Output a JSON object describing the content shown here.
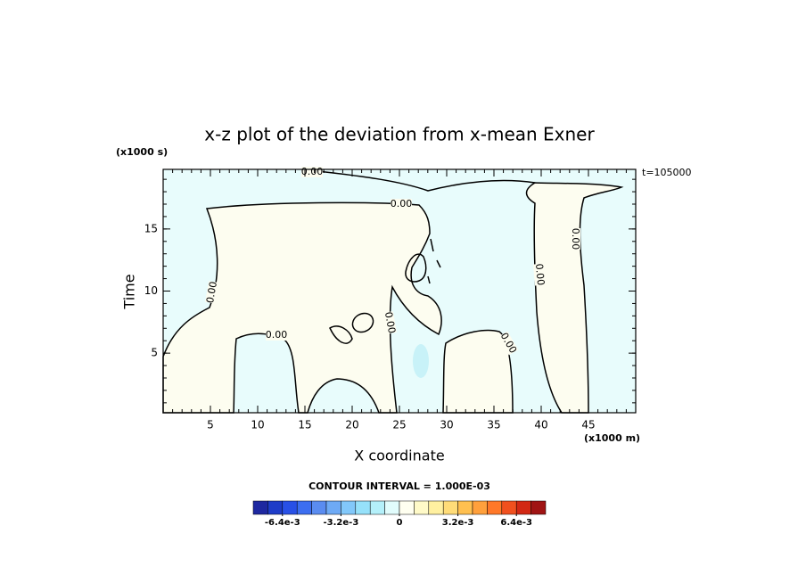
{
  "chart_data": {
    "type": "contour",
    "title": "x-z plot of the deviation from x-mean Exner",
    "x_label": "X coordinate",
    "y_label": "Time",
    "x_unit": "(x1000 m)",
    "y_unit": "(x1000 s)",
    "annotation": "t=105000",
    "xlim": [
      0,
      50
    ],
    "ylim": [
      0.2,
      19.8
    ],
    "xticks": [
      5,
      10,
      15,
      20,
      25,
      30,
      35,
      40,
      45
    ],
    "yticks": [
      5,
      10,
      15
    ],
    "minor_tick_step": 1,
    "contour_labels": [
      "0.00",
      "0.00",
      "0.00",
      "0.00",
      "0.00",
      "0.00",
      "0.00",
      "0.00"
    ],
    "fill_colors": {
      "negative": "#e8fcfc",
      "positive": "#fdfdf0",
      "blob": "#c8f2f8"
    },
    "line_color": "#000000",
    "colorbar": {
      "label": "CONTOUR INTERVAL = 1.000E-03",
      "lim": [
        -0.008,
        0.008
      ],
      "ticks": [
        {
          "value": -0.0064,
          "label": "-6.4e-3"
        },
        {
          "value": -0.0032,
          "label": "-3.2e-3"
        },
        0,
        {
          "value": 0.0032,
          "label": "3.2e-3"
        },
        {
          "value": 0.0064,
          "label": "6.4e-3"
        }
      ],
      "colors": [
        "#1e28a0",
        "#1e3cc8",
        "#2850e6",
        "#3c6ef0",
        "#5a8cf0",
        "#6eaaf5",
        "#82c8fa",
        "#96e1fa",
        "#b4f0fa",
        "#e1fcfc",
        "#fffff0",
        "#fffac8",
        "#fff0a0",
        "#ffdc78",
        "#ffc050",
        "#ffa03c",
        "#ff7828",
        "#f0501e",
        "#d22814",
        "#a01414"
      ]
    }
  }
}
